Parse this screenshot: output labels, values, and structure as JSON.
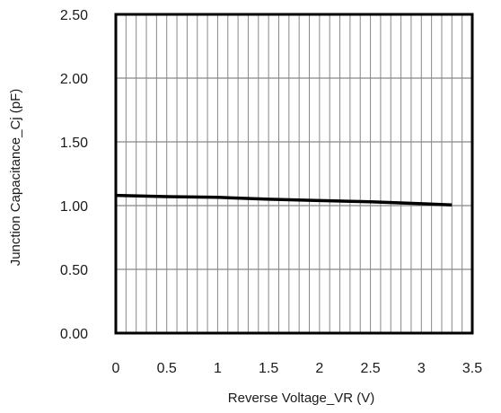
{
  "chart_data": {
    "type": "line",
    "title": "",
    "xlabel": "Reverse Voltage_VR (V)",
    "ylabel": "Junction Capacitance_Cj (pF)",
    "xlim": [
      0,
      3.5
    ],
    "ylim": [
      0,
      2.5
    ],
    "x_ticks": [
      "0",
      "0.5",
      "1",
      "1.5",
      "2",
      "2.5",
      "3",
      "3.5"
    ],
    "y_ticks": [
      "0.00",
      "0.50",
      "1.00",
      "1.50",
      "2.00",
      "2.50"
    ],
    "grid": true,
    "legend": "none",
    "series": [
      {
        "x": [
          0,
          0.5,
          1.0,
          1.5,
          2.0,
          2.5,
          3.0,
          3.3
        ],
        "y": [
          1.08,
          1.07,
          1.065,
          1.05,
          1.04,
          1.03,
          1.015,
          1.005
        ]
      }
    ],
    "colors": {
      "line": "#000000",
      "grid": "#888888",
      "frame": "#000000"
    }
  }
}
